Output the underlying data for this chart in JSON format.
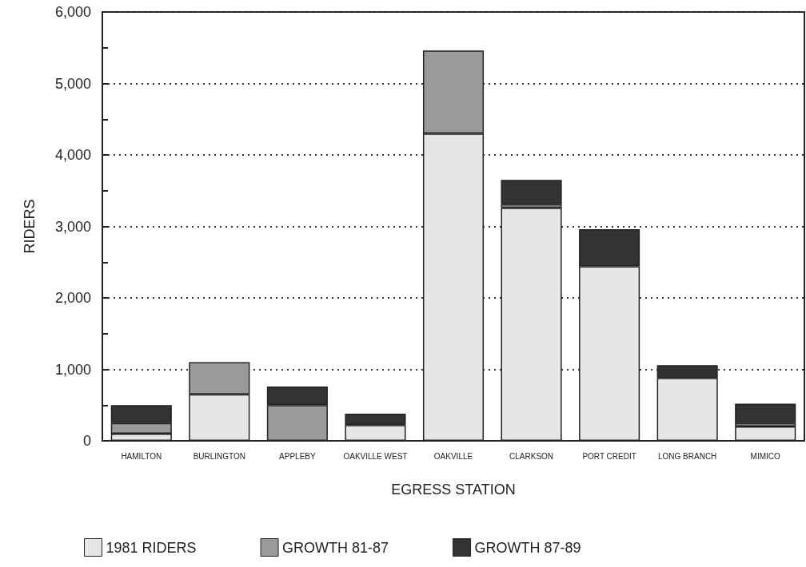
{
  "chart_data": {
    "type": "bar",
    "stacked": true,
    "xlabel": "EGRESS STATION",
    "ylabel": "RIDERS",
    "categories": [
      "HAMILTON",
      "BURLINGTON",
      "APPLEBY",
      "OAKVILLE WEST",
      "OAKVILLE",
      "CLARKSON",
      "PORT CREDIT",
      "LONG BRANCH",
      "MIMICO"
    ],
    "series": [
      {
        "name": "1981 RIDERS",
        "color": "#e6e6e6",
        "values": [
          100,
          650,
          0,
          220,
          4300,
          3260,
          2440,
          880,
          200
        ]
      },
      {
        "name": "GROWTH 81-87",
        "color": "#9a9a9a",
        "values": [
          150,
          450,
          500,
          0,
          1160,
          50,
          0,
          0,
          50
        ]
      },
      {
        "name": "GROWTH 87-89",
        "color": "#333333",
        "values": [
          250,
          0,
          260,
          160,
          0,
          340,
          520,
          180,
          270
        ]
      }
    ],
    "ylim": [
      0,
      6000
    ],
    "yticks": [
      0,
      {
        "value": 500,
        "label": null
      },
      {
        "value": 1000,
        "label": "1,000"
      },
      {
        "value": 1500,
        "label": null
      },
      {
        "value": 2000,
        "label": "2,000"
      },
      {
        "value": 2500,
        "label": null
      },
      {
        "value": 3000,
        "label": "3,000"
      },
      {
        "value": 3500,
        "label": null
      },
      {
        "value": 4000,
        "label": "4,000"
      },
      {
        "value": 4500,
        "label": null
      },
      {
        "value": 5000,
        "label": "5,000"
      },
      {
        "value": 5500,
        "label": null
      },
      {
        "value": 6000,
        "label": "6,000"
      }
    ],
    "grid": "y",
    "legend": "bottom"
  }
}
